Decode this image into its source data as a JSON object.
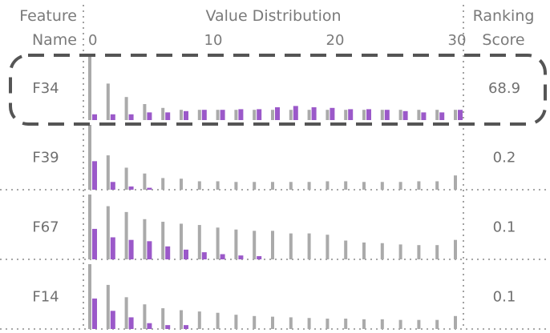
{
  "header": {
    "feature_col": [
      "Feature",
      "Name"
    ],
    "dist_col": "Value Distribution",
    "score_col": [
      "Ranking",
      "Score"
    ]
  },
  "chart_data": {
    "type": "bar",
    "title": "",
    "xlabel": "Value Distribution",
    "x_ticks": [
      0,
      10,
      20,
      30
    ],
    "xlim": [
      0,
      30
    ],
    "bins": 21,
    "series_colors": {
      "all": "#aaaaaa",
      "selected": "#9b59c9"
    },
    "rows": [
      {
        "feature": "F34",
        "score": "68.9",
        "highlighted": true,
        "gray": [
          1.0,
          0.57,
          0.36,
          0.25,
          0.19,
          0.16,
          0.16,
          0.16,
          0.16,
          0.16,
          0.16,
          0.16,
          0.16,
          0.16,
          0.16,
          0.16,
          0.16,
          0.16,
          0.16,
          0.16,
          0.16
        ],
        "purple": [
          0.09,
          0.09,
          0.09,
          0.12,
          0.12,
          0.14,
          0.16,
          0.16,
          0.17,
          0.17,
          0.2,
          0.22,
          0.2,
          0.19,
          0.17,
          0.17,
          0.16,
          0.14,
          0.12,
          0.12,
          0.16
        ]
      },
      {
        "feature": "F39",
        "score": "0.2",
        "highlighted": false,
        "gray": [
          1.0,
          0.53,
          0.34,
          0.25,
          0.18,
          0.17,
          0.13,
          0.13,
          0.12,
          0.12,
          0.12,
          0.12,
          0.12,
          0.13,
          0.13,
          0.12,
          0.12,
          0.12,
          0.13,
          0.13,
          0.22
        ],
        "purple": [
          0.44,
          0.12,
          0.05,
          0.03,
          0,
          0,
          0,
          0,
          0,
          0,
          0,
          0,
          0,
          0,
          0,
          0,
          0,
          0,
          0,
          0,
          0
        ]
      },
      {
        "feature": "F67",
        "score": "0.1",
        "highlighted": false,
        "gray": [
          1.0,
          0.82,
          0.73,
          0.62,
          0.58,
          0.55,
          0.53,
          0.49,
          0.46,
          0.44,
          0.44,
          0.4,
          0.4,
          0.38,
          0.29,
          0.26,
          0.25,
          0.23,
          0.22,
          0.22,
          0.3
        ],
        "purple": [
          0.47,
          0.34,
          0.3,
          0.28,
          0.2,
          0.15,
          0.11,
          0.08,
          0.06,
          0.05,
          0,
          0,
          0,
          0,
          0,
          0,
          0,
          0,
          0,
          0,
          0
        ]
      },
      {
        "feature": "F14",
        "score": "0.1",
        "highlighted": false,
        "gray": [
          1.0,
          0.68,
          0.49,
          0.38,
          0.32,
          0.29,
          0.27,
          0.25,
          0.22,
          0.2,
          0.19,
          0.18,
          0.17,
          0.16,
          0.16,
          0.15,
          0.15,
          0.14,
          0.14,
          0.14,
          0.2
        ],
        "purple": [
          0.47,
          0.28,
          0.18,
          0.09,
          0.06,
          0.06,
          0,
          0,
          0,
          0,
          0,
          0,
          0,
          0,
          0,
          0,
          0,
          0,
          0,
          0,
          0
        ]
      }
    ]
  }
}
